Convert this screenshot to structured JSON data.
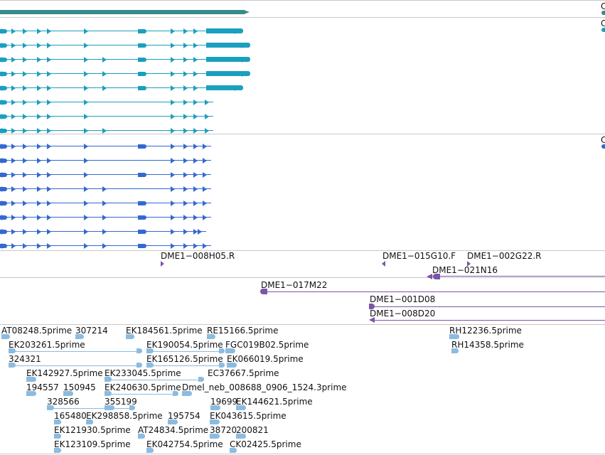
{
  "colors": {
    "summary": "#3a8a8c",
    "transcript_cyan": "#1b9fbf",
    "transcript_blue": "#3469d0",
    "clone": "#7b55a8",
    "est": "#8cbbe0",
    "divider": "#c8c8c8"
  },
  "edge_labels": [
    "C",
    "C",
    "C"
  ],
  "clone_labels": [
    "DME1−008H05.R",
    "DME1−015G10.F",
    "DME1−002G22.R",
    "DME1−021N16",
    "DME1−017M22",
    "DME1−001D08",
    "DME1−008D20"
  ],
  "est_labels": [
    "AT08248.5prime",
    "307214",
    "EK184561.5prime",
    "RE15166.5prime",
    "RH12236.5prime",
    "EK203261.5prime",
    "EK190054.5prime",
    "FGC019B02.5prime",
    "RH14358.5prime",
    "324321",
    "EK165126.5prime",
    "EK066019.5prime",
    "EK142927.5prime",
    "EK233045.5prime",
    "EC37667.5prime",
    "194557",
    "150945",
    "EK240630.5prime",
    "Dmel_neb_008688_0906_1524.3prime",
    "328566",
    "355199",
    "19699",
    "EK144621.5prime",
    "165480",
    "EK298858.5prime",
    "195754",
    "EK043615.5prime",
    "EK121930.5prime",
    "AT24834.5prime",
    "38720",
    "200821",
    "EK123109.5prime",
    "EK042754.5prime",
    "CK02425.5prime"
  ]
}
